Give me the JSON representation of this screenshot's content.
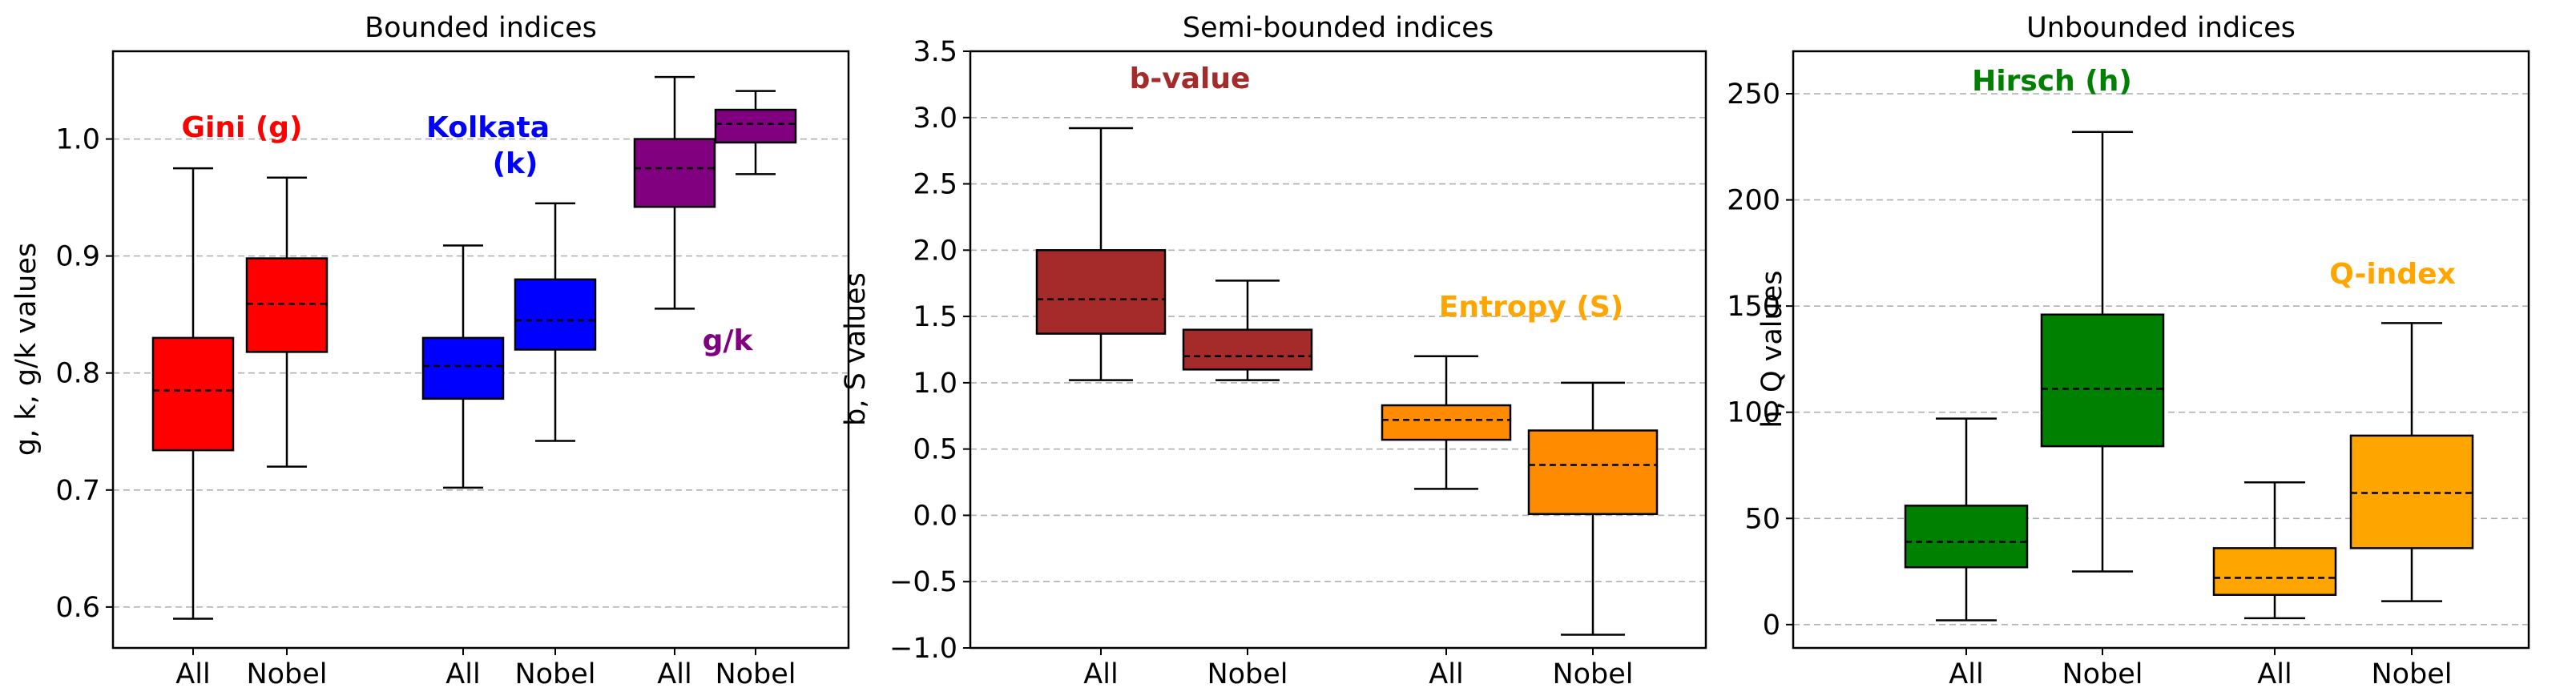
{
  "chart_data": [
    {
      "type": "box",
      "title": "Bounded indices",
      "xlabel": "",
      "ylabel": "g, k, g/k values",
      "ylim": [
        0.565,
        1.075
      ],
      "yticks": [
        0.6,
        0.7,
        0.8,
        0.9,
        1.0
      ],
      "ytick_labels": [
        "0.6",
        "0.7",
        "0.8",
        "0.9",
        "1.0"
      ],
      "grid": "horizontal-dashed",
      "categories": [
        "All",
        "Nobel",
        "All",
        "Nobel",
        "All",
        "Nobel"
      ],
      "boxes": [
        {
          "group": "Gini (g)",
          "category": "All",
          "whisker_low": 0.59,
          "q1": 0.734,
          "median": 0.785,
          "q3": 0.83,
          "whisker_high": 0.975,
          "color": "#ff0000"
        },
        {
          "group": "Gini (g)",
          "category": "Nobel",
          "whisker_low": 0.72,
          "q1": 0.818,
          "median": 0.859,
          "q3": 0.898,
          "whisker_high": 0.967,
          "color": "#ff0000"
        },
        {
          "group": "Kolkata (k)",
          "category": "All",
          "whisker_low": 0.702,
          "q1": 0.778,
          "median": 0.806,
          "q3": 0.83,
          "whisker_high": 0.909,
          "color": "#0000ff"
        },
        {
          "group": "Kolkata (k)",
          "category": "Nobel",
          "whisker_low": 0.742,
          "q1": 0.82,
          "median": 0.845,
          "q3": 0.88,
          "whisker_high": 0.945,
          "color": "#0000ff"
        },
        {
          "group": "g/k",
          "category": "All",
          "whisker_low": 0.855,
          "q1": 0.942,
          "median": 0.975,
          "q3": 1.0,
          "whisker_high": 1.053,
          "color": "#800080"
        },
        {
          "group": "g/k",
          "category": "Nobel",
          "whisker_low": 0.97,
          "q1": 0.997,
          "median": 1.013,
          "q3": 1.025,
          "whisker_high": 1.041,
          "color": "#800080"
        }
      ],
      "annotations": [
        {
          "text": "Gini (g)",
          "color": "#ff0000"
        },
        {
          "text": "Kolkata",
          "color": "#0000ff"
        },
        {
          "text": "(k)",
          "color": "#0000ff"
        },
        {
          "text": "g/k",
          "color": "#800080"
        }
      ]
    },
    {
      "type": "box",
      "title": "Semi-bounded indices",
      "xlabel": "",
      "ylabel": "b, S values",
      "ylim": [
        -1.0,
        3.5
      ],
      "yticks": [
        -1.0,
        -0.5,
        0.0,
        0.5,
        1.0,
        1.5,
        2.0,
        2.5,
        3.0,
        3.5
      ],
      "ytick_labels": [
        "−1.0",
        "−0.5",
        "0.0",
        "0.5",
        "1.0",
        "1.5",
        "2.0",
        "2.5",
        "3.0",
        "3.5"
      ],
      "grid": "horizontal-dashed",
      "categories": [
        "All",
        "Nobel",
        "All",
        "Nobel"
      ],
      "boxes": [
        {
          "group": "b-value",
          "category": "All",
          "whisker_low": 1.02,
          "q1": 1.37,
          "median": 1.63,
          "q3": 2.0,
          "whisker_high": 2.92,
          "color": "#a52a2a"
        },
        {
          "group": "b-value",
          "category": "Nobel",
          "whisker_low": 1.02,
          "q1": 1.1,
          "median": 1.2,
          "q3": 1.4,
          "whisker_high": 1.77,
          "color": "#a52a2a"
        },
        {
          "group": "Entropy (S)",
          "category": "All",
          "whisker_low": 0.2,
          "q1": 0.57,
          "median": 0.72,
          "q3": 0.83,
          "whisker_high": 1.2,
          "color": "#ff8c00"
        },
        {
          "group": "Entropy (S)",
          "category": "Nobel",
          "whisker_low": -0.9,
          "q1": 0.01,
          "median": 0.38,
          "q3": 0.64,
          "whisker_high": 1.0,
          "color": "#ff8c00"
        }
      ],
      "annotations": [
        {
          "text": "b-value",
          "color": "#a52a2a"
        },
        {
          "text": "Entropy (S)",
          "color": "#ffa500"
        }
      ]
    },
    {
      "type": "box",
      "title": "Unbounded indices",
      "xlabel": "",
      "ylabel": "h, Q values",
      "ylim": [
        -11,
        270
      ],
      "yticks": [
        0,
        50,
        100,
        150,
        200,
        250
      ],
      "ytick_labels": [
        "0",
        "50",
        "100",
        "150",
        "200",
        "250"
      ],
      "grid": "horizontal-dashed",
      "categories": [
        "All",
        "Nobel",
        "All",
        "Nobel"
      ],
      "boxes": [
        {
          "group": "Hirsch (h)",
          "category": "All",
          "whisker_low": 2,
          "q1": 27,
          "median": 39,
          "q3": 56,
          "whisker_high": 97,
          "color": "#008000"
        },
        {
          "group": "Hirsch (h)",
          "category": "Nobel",
          "whisker_low": 25,
          "q1": 84,
          "median": 111,
          "q3": 146,
          "whisker_high": 232,
          "color": "#008000"
        },
        {
          "group": "Q-index",
          "category": "All",
          "whisker_low": 3,
          "q1": 14,
          "median": 22,
          "q3": 36,
          "whisker_high": 67,
          "color": "#ffa500"
        },
        {
          "group": "Q-index",
          "category": "Nobel",
          "whisker_low": 11,
          "q1": 36,
          "median": 62,
          "q3": 89,
          "whisker_high": 142,
          "color": "#ffa500"
        }
      ],
      "annotations": [
        {
          "text": "Hirsch (h)",
          "color": "#008000"
        },
        {
          "text": "Q-index",
          "color": "#ffa500"
        }
      ]
    }
  ]
}
